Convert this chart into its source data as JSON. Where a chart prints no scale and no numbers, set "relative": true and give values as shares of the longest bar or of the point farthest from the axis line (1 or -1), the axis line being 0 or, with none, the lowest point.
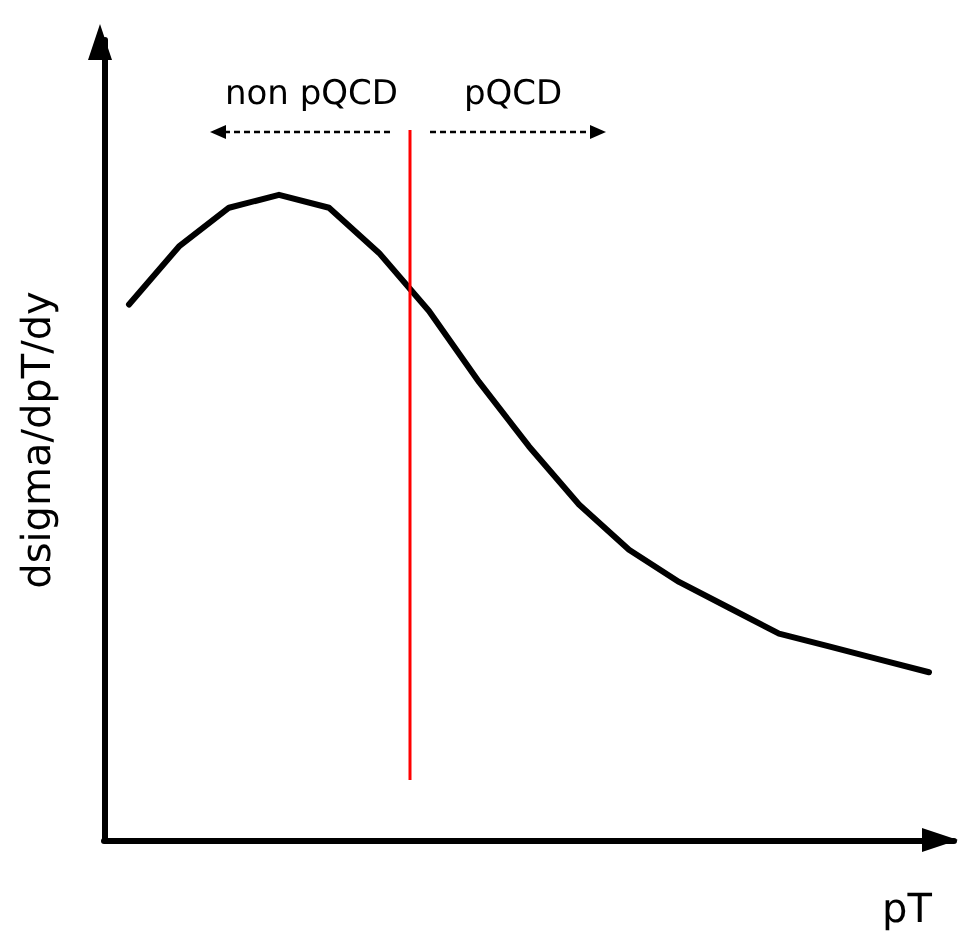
{
  "chart_data": {
    "type": "line",
    "relative": true,
    "xlabel": "pT",
    "ylabel": "dsigma/dpT/dy",
    "grid": false,
    "marker": "none",
    "line_style": "solid",
    "categories": [
      null,
      null,
      null,
      null,
      null,
      null,
      null,
      null,
      null,
      null,
      null,
      null,
      null,
      null,
      null,
      null,
      null
    ],
    "series": [
      {
        "color": "#000000",
        "values": [
          0.83,
          0.92,
          0.98,
          1,
          0.98,
          0.91,
          0.82,
          0.71,
          0.61,
          0.52,
          0.45,
          0.4,
          0.36,
          0.32,
          0.3,
          0.28,
          0.26
        ]
      }
    ],
    "annotations": [
      "non pQCD",
      "pQCD"
    ]
  }
}
